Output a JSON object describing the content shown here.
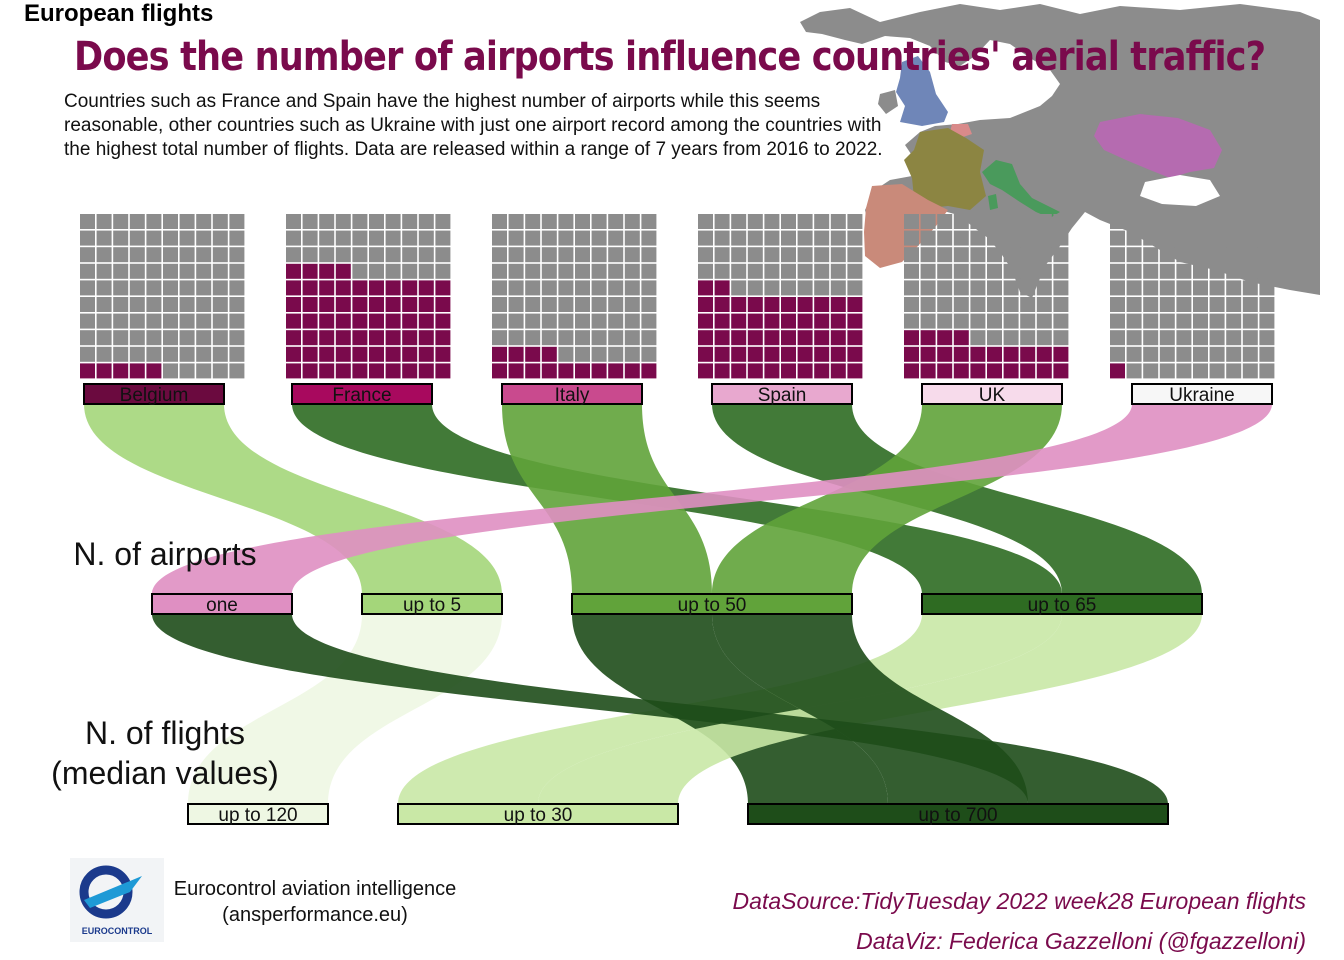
{
  "header": {
    "kicker": "European flights",
    "title": "Does the number of airports influence countries' aerial traffic?",
    "subtitle": "Countries such as France and Spain have the highest number of airports while this seems reasonable, other countries such as Ukraine with just one airport record among the countries with the highest total number of flights. Data are released within a range of 7 years from 2016 to 2022."
  },
  "chart_data": {
    "type": "waffle-alluvial",
    "waffle": {
      "grid": "10 x 10",
      "filled_color": "#7a0a4c",
      "empty_color": "#8c8c8c",
      "countries": [
        {
          "name": "Belgium",
          "filled_cells": 5
        },
        {
          "name": "France",
          "filled_cells": 64
        },
        {
          "name": "Italy",
          "filled_cells": 14
        },
        {
          "name": "Spain",
          "filled_cells": 52
        },
        {
          "name": "UK",
          "filled_cells": 24
        },
        {
          "name": "Ukraine",
          "filled_cells": 1
        }
      ]
    },
    "strata": {
      "airports_axis_label": "N. of airports",
      "flights_axis_label": [
        "N. of flights",
        "(median values)"
      ],
      "country": [
        {
          "name": "Belgium",
          "color": "#6b0a3f"
        },
        {
          "name": "France",
          "color": "#a8095e"
        },
        {
          "name": "Italy",
          "color": "#c94a8e"
        },
        {
          "name": "Spain",
          "color": "#e8a8cf"
        },
        {
          "name": "UK",
          "color": "#f7dbeb"
        },
        {
          "name": "Ukraine",
          "color": "#f7f7f7"
        }
      ],
      "airports": [
        {
          "name": "one",
          "color": "#df8fc2"
        },
        {
          "name": "up to 5",
          "color": "#a4d67a"
        },
        {
          "name": "up to 50",
          "color": "#61a33a"
        },
        {
          "name": "up to 65",
          "color": "#2e6b22"
        }
      ],
      "flights": [
        {
          "name": "up to 120",
          "color": "#eef7e3"
        },
        {
          "name": "up to 30",
          "color": "#c9e8a6"
        },
        {
          "name": "up to 700",
          "color": "#1e4d19"
        }
      ]
    },
    "flows": [
      {
        "country": "Belgium",
        "airports": "up to 5",
        "flights": "up to 120"
      },
      {
        "country": "France",
        "airports": "up to 65",
        "flights": "up to 30"
      },
      {
        "country": "Italy",
        "airports": "up to 50",
        "flights": "up to 700"
      },
      {
        "country": "Spain",
        "airports": "up to 65",
        "flights": "up to 30"
      },
      {
        "country": "UK",
        "airports": "up to 50",
        "flights": "up to 700"
      },
      {
        "country": "Ukraine",
        "airports": "one",
        "flights": "up to 700"
      }
    ],
    "map_highlights": [
      {
        "region": "UK",
        "color": "#6f86b8"
      },
      {
        "region": "Belgium",
        "color": "#d98a8a"
      },
      {
        "region": "France",
        "color": "#8c8542"
      },
      {
        "region": "Spain",
        "color": "#c98a7a"
      },
      {
        "region": "Italy",
        "color": "#4a9a5c"
      },
      {
        "region": "Ukraine",
        "color": "#b56bb0"
      }
    ]
  },
  "footer": {
    "source_org": "Eurocontrol aviation intelligence",
    "source_site": "(ansperformance.eu)",
    "logo_text": "EUROCONTROL",
    "datasource": "DataSource:TidyTuesday 2022 week28 European flights",
    "dataviz": "DataViz: Federica Gazzelloni (@fgazzelloni)"
  }
}
